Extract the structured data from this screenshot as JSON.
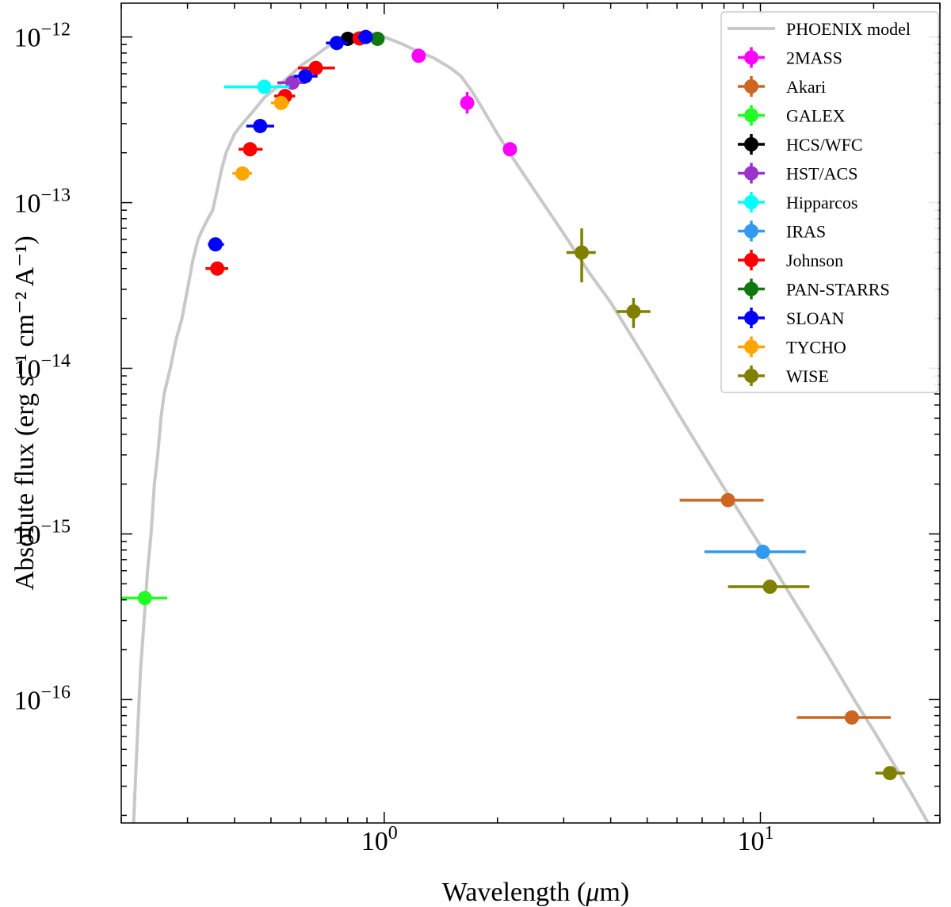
{
  "chart_data": {
    "type": "scatter",
    "xlabel_pre": "Wavelength (",
    "xlabel_mu": "μ",
    "xlabel_post": "m)",
    "ylabel": "Absolute flux (erg s⁻¹ cm⁻² A⁻¹)",
    "xscale": "log",
    "yscale": "log",
    "xlim": [
      0.2,
      30
    ],
    "ylim": [
      1.8e-17,
      1.6e-12
    ],
    "grid": false,
    "legend_position": "top-right",
    "x_ticks": [
      {
        "value": 1,
        "base": "10",
        "exp": "0"
      },
      {
        "value": 10,
        "base": "10",
        "exp": "1"
      }
    ],
    "y_ticks": [
      {
        "value": 1e-12,
        "base": "10",
        "exp": "−12"
      },
      {
        "value": 1e-13,
        "base": "10",
        "exp": "−13"
      },
      {
        "value": 1e-14,
        "base": "10",
        "exp": "−14"
      },
      {
        "value": 1e-15,
        "base": "10",
        "exp": "−15"
      },
      {
        "value": 1e-16,
        "base": "10",
        "exp": "−16"
      }
    ],
    "model": {
      "name": "PHOENIX model",
      "color": "#c8c8c8",
      "points": [
        [
          0.215,
          1.5e-17
        ],
        [
          0.22,
          5e-17
        ],
        [
          0.225,
          1.5e-16
        ],
        [
          0.23,
          3e-16
        ],
        [
          0.235,
          6e-16
        ],
        [
          0.24,
          1e-15
        ],
        [
          0.245,
          2e-15
        ],
        [
          0.25,
          3e-15
        ],
        [
          0.255,
          5e-15
        ],
        [
          0.26,
          7e-15
        ],
        [
          0.27,
          1e-14
        ],
        [
          0.28,
          1.5e-14
        ],
        [
          0.29,
          2e-14
        ],
        [
          0.3,
          3e-14
        ],
        [
          0.31,
          4.5e-14
        ],
        [
          0.32,
          6e-14
        ],
        [
          0.33,
          7e-14
        ],
        [
          0.34,
          8e-14
        ],
        [
          0.35,
          9e-14
        ],
        [
          0.36,
          1.2e-13
        ],
        [
          0.37,
          1.6e-13
        ],
        [
          0.38,
          2e-13
        ],
        [
          0.4,
          2.6e-13
        ],
        [
          0.42,
          3e-13
        ],
        [
          0.45,
          3.6e-13
        ],
        [
          0.48,
          4.3e-13
        ],
        [
          0.52,
          5e-13
        ],
        [
          0.56,
          5.8e-13
        ],
        [
          0.6,
          6.7e-13
        ],
        [
          0.65,
          7.6e-13
        ],
        [
          0.7,
          8.6e-13
        ],
        [
          0.75,
          9.5e-13
        ],
        [
          0.8,
          1.02e-12
        ],
        [
          0.85,
          1.05e-12
        ],
        [
          0.9,
          1.06e-12
        ],
        [
          0.95,
          1.04e-12
        ],
        [
          1.0,
          1e-12
        ],
        [
          1.1,
          9.2e-13
        ],
        [
          1.2,
          8.4e-13
        ],
        [
          1.35,
          7.5e-13
        ],
        [
          1.5,
          6.5e-13
        ],
        [
          1.6,
          5.8e-13
        ],
        [
          1.7,
          4.8e-13
        ],
        [
          1.8,
          3.9e-13
        ],
        [
          2.0,
          2.6e-13
        ],
        [
          2.2,
          1.85e-13
        ],
        [
          2.5,
          1.2e-13
        ],
        [
          3.0,
          6.5e-14
        ],
        [
          3.5,
          3.8e-14
        ],
        [
          4.0,
          2.5e-14
        ],
        [
          5.0,
          1.1e-14
        ],
        [
          6.0,
          5.5e-15
        ],
        [
          7.0,
          3.1e-15
        ],
        [
          8.0,
          1.9e-15
        ],
        [
          10.0,
          8.5e-16
        ],
        [
          12.0,
          4.3e-16
        ],
        [
          15.0,
          1.9e-16
        ],
        [
          18.0,
          9.5e-17
        ],
        [
          20.0,
          6.5e-17
        ],
        [
          25.0,
          2.8e-17
        ],
        [
          30.0,
          1.35e-17
        ]
      ]
    },
    "series": [
      {
        "name": "2MASS",
        "color": "#ff00ff",
        "points": [
          {
            "x": 1.235,
            "y": 7.7e-13,
            "xerr": [
              1.19,
              1.28
            ],
            "yerr": [
              7.3e-13,
              8.1e-13
            ]
          },
          {
            "x": 1.662,
            "y": 4e-13,
            "xerr": [
              1.6,
              1.72
            ],
            "yerr": [
              3.45e-13,
              4.65e-13
            ]
          },
          {
            "x": 2.159,
            "y": 2.1e-13,
            "xerr": [
              2.1,
              2.22
            ],
            "yerr": [
              2e-13,
              2.2e-13
            ]
          }
        ]
      },
      {
        "name": "Akari",
        "color": "#cc6622",
        "points": [
          {
            "x": 8.2,
            "y": 1.6e-15,
            "xerr": [
              6.1,
              10.2
            ],
            "yerr": [
              1.55e-15,
              1.65e-15
            ]
          },
          {
            "x": 17.5,
            "y": 7.8e-17,
            "xerr": [
              12.5,
              22.2
            ],
            "yerr": [
              7.5e-17,
              8.1e-17
            ]
          }
        ]
      },
      {
        "name": "GALEX",
        "color": "#22ff22",
        "points": [
          {
            "x": 0.231,
            "y": 4.1e-16,
            "xerr": [
              0.2,
              0.265
            ],
            "yerr": [
              3.9e-16,
              4.3e-16
            ]
          }
        ]
      },
      {
        "name": "HCS/WFC",
        "color": "#000000",
        "points": [
          {
            "x": 0.8,
            "y": 9.75e-13,
            "xerr": [
              0.78,
              0.83
            ],
            "yerr": [
              9.5e-13,
              1e-12
            ]
          }
        ]
      },
      {
        "name": "HST/ACS",
        "color": "#9933cc",
        "points": [
          {
            "x": 0.57,
            "y": 5.3e-13,
            "xerr": [
              0.52,
              0.62
            ],
            "yerr": [
              5.1e-13,
              5.5e-13
            ]
          }
        ]
      },
      {
        "name": "Hipparcos",
        "color": "#00ffff",
        "points": [
          {
            "x": 0.48,
            "y": 5e-13,
            "xerr": [
              0.375,
              0.56
            ],
            "yerr": [
              4.8e-13,
              5.2e-13
            ]
          }
        ]
      },
      {
        "name": "IRAS",
        "color": "#3399ee",
        "points": [
          {
            "x": 10.15,
            "y": 7.8e-16,
            "xerr": [
              7.1,
              13.2
            ],
            "yerr": [
              7.5e-16,
              8.1e-16
            ]
          }
        ]
      },
      {
        "name": "Johnson",
        "color": "#ff0000",
        "points": [
          {
            "x": 0.36,
            "y": 4e-14,
            "xerr": [
              0.335,
              0.385
            ],
            "yerr": [
              3.8e-14,
              4.2e-14
            ]
          },
          {
            "x": 0.44,
            "y": 2.1e-13,
            "xerr": [
              0.41,
              0.475
            ],
            "yerr": [
              2e-13,
              2.2e-13
            ]
          },
          {
            "x": 0.545,
            "y": 4.4e-13,
            "xerr": [
              0.51,
              0.58
            ],
            "yerr": [
              4.2e-13,
              4.6e-13
            ]
          },
          {
            "x": 0.658,
            "y": 6.5e-13,
            "xerr": [
              0.59,
              0.74
            ],
            "yerr": [
              6.2e-13,
              6.8e-13
            ]
          },
          {
            "x": 0.86,
            "y": 9.8e-13,
            "xerr": [
              0.83,
              0.89
            ],
            "yerr": [
              9.5e-13,
              1.01e-12
            ]
          }
        ]
      },
      {
        "name": "PAN-STARRS",
        "color": "#117711",
        "points": [
          {
            "x": 0.96,
            "y": 9.75e-13,
            "xerr": [
              0.94,
              0.98
            ],
            "yerr": [
              9.5e-13,
              1e-12
            ]
          }
        ]
      },
      {
        "name": "SLOAN",
        "color": "#0000ff",
        "points": [
          {
            "x": 0.356,
            "y": 5.6e-14,
            "xerr": [
              0.34,
              0.375
            ],
            "yerr": [
              5.4e-14,
              5.8e-14
            ]
          },
          {
            "x": 0.468,
            "y": 2.9e-13,
            "xerr": [
              0.43,
              0.51
            ],
            "yerr": [
              2.8e-13,
              3e-13
            ]
          },
          {
            "x": 0.617,
            "y": 5.8e-13,
            "xerr": [
              0.575,
              0.665
            ],
            "yerr": [
              5.6e-13,
              6e-13
            ]
          },
          {
            "x": 0.748,
            "y": 9.2e-13,
            "xerr": [
              0.7,
              0.8
            ],
            "yerr": [
              8.9e-13,
              9.5e-13
            ]
          },
          {
            "x": 0.893,
            "y": 1e-12,
            "xerr": [
              0.85,
              0.93
            ],
            "yerr": [
              9.7e-13,
              1.03e-12
            ]
          }
        ]
      },
      {
        "name": "TYCHO",
        "color": "#ffa500",
        "points": [
          {
            "x": 0.42,
            "y": 1.5e-13,
            "xerr": [
              0.395,
              0.445
            ],
            "yerr": [
              1.45e-13,
              1.55e-13
            ]
          },
          {
            "x": 0.532,
            "y": 4e-13,
            "xerr": [
              0.5,
              0.56
            ],
            "yerr": [
              3.85e-13,
              4.15e-13
            ]
          }
        ]
      },
      {
        "name": "WISE",
        "color": "#808000",
        "points": [
          {
            "x": 3.35,
            "y": 5e-14,
            "xerr": [
              3.05,
              3.65
            ],
            "yerr": [
              3.3e-14,
              7e-14
            ]
          },
          {
            "x": 4.6,
            "y": 2.2e-14,
            "xerr": [
              4.15,
              5.1
            ],
            "yerr": [
              1.75e-14,
              2.65e-14
            ]
          },
          {
            "x": 10.6,
            "y": 4.8e-16,
            "xerr": [
              8.2,
              13.5
            ],
            "yerr": [
              4.6e-16,
              5e-16
            ]
          },
          {
            "x": 22.1,
            "y": 3.6e-17,
            "xerr": [
              20.2,
              24.2
            ],
            "yerr": [
              3.45e-17,
              3.75e-17
            ]
          }
        ]
      }
    ]
  }
}
